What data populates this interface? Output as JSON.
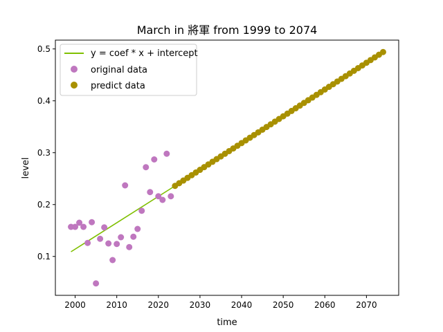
{
  "chart_data": {
    "type": "scatter",
    "title": "March in 將軍 from 1999 to 2074",
    "xlabel": "time",
    "ylabel": "level",
    "xlim": [
      1995.25,
      2077.75
    ],
    "ylim": [
      0.025,
      0.517
    ],
    "x_ticks": [
      2000,
      2010,
      2020,
      2030,
      2040,
      2050,
      2060,
      2070
    ],
    "y_ticks": [
      0.1,
      0.2,
      0.3,
      0.4,
      0.5
    ],
    "grid": false,
    "legend_position": "upper-left",
    "colors": {
      "fit_line": "#7fbf00",
      "original": "#bf77bf",
      "predict": "#a89000"
    },
    "series": [
      {
        "name": "y = coef * x + intercept",
        "kind": "line",
        "x": [
          1999,
          2024
        ],
        "y": [
          0.109,
          0.236
        ]
      },
      {
        "name": "original data",
        "kind": "scatter",
        "x": [
          1999,
          2000,
          2001,
          2002,
          2003,
          2004,
          2005,
          2006,
          2007,
          2008,
          2009,
          2010,
          2011,
          2012,
          2013,
          2014,
          2015,
          2016,
          2017,
          2018,
          2019,
          2020,
          2021,
          2022,
          2023
        ],
        "y": [
          0.157,
          0.157,
          0.165,
          0.157,
          0.126,
          0.166,
          0.048,
          0.134,
          0.156,
          0.125,
          0.093,
          0.124,
          0.137,
          0.237,
          0.118,
          0.138,
          0.153,
          0.188,
          0.272,
          0.224,
          0.287,
          0.216,
          0.209,
          0.298,
          0.216
        ]
      },
      {
        "name": "predict data",
        "kind": "scatter",
        "x_start": 2024,
        "x_end": 2074,
        "y_start": 0.236,
        "y_end": 0.494
      }
    ]
  }
}
